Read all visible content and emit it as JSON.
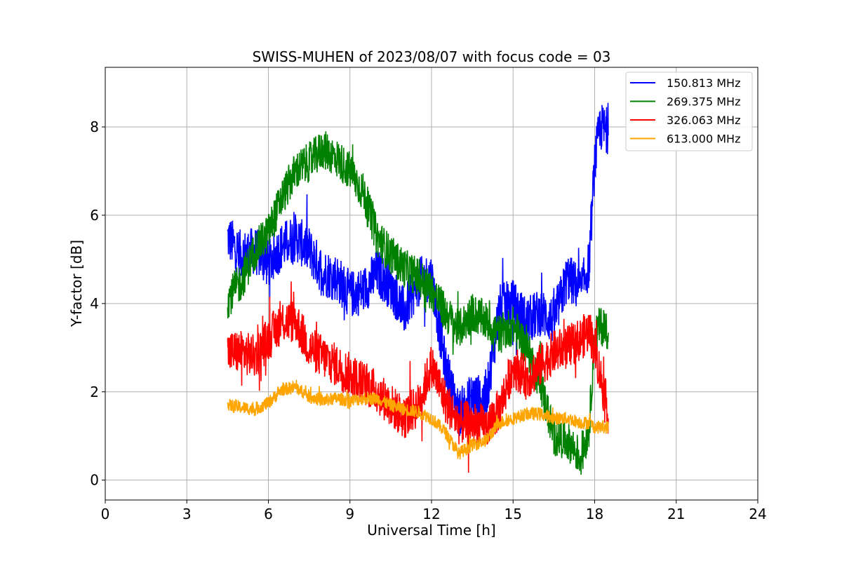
{
  "chart_data": {
    "type": "line",
    "title": "SWISS-MUHEN of 2023/08/07 with focus code = 03",
    "xlabel": "Universal Time [h]",
    "ylabel": "Y-factor [dB]",
    "xlim": [
      0,
      24
    ],
    "ylim": [
      -0.45,
      9.35
    ],
    "xticks": [
      0,
      3,
      6,
      9,
      12,
      15,
      18,
      21,
      24
    ],
    "xtick_labels": [
      "0",
      "3",
      "6",
      "9",
      "12",
      "15",
      "18",
      "21",
      "24"
    ],
    "yticks": [
      0,
      2,
      4,
      6,
      8
    ],
    "ytick_labels": [
      "0",
      "2",
      "4",
      "6",
      "8"
    ],
    "grid": true,
    "legend_position": "top-right",
    "series": [
      {
        "name": "150.813 MHz",
        "color": "#0000ff",
        "x": [
          4.5,
          5.0,
          5.5,
          6.0,
          6.5,
          7.0,
          7.5,
          8.0,
          8.5,
          9.0,
          9.5,
          10.0,
          10.5,
          11.0,
          11.5,
          12.0,
          12.5,
          13.0,
          13.5,
          14.0,
          14.5,
          15.0,
          15.5,
          16.0,
          16.5,
          17.0,
          17.5,
          17.8,
          18.0,
          18.2,
          18.5
        ],
        "y": [
          5.5,
          5.1,
          5.2,
          4.9,
          5.3,
          5.5,
          5.2,
          4.7,
          4.6,
          4.2,
          4.3,
          4.7,
          4.4,
          3.8,
          4.5,
          4.6,
          2.6,
          1.5,
          1.9,
          1.8,
          3.9,
          4.0,
          3.6,
          3.8,
          3.6,
          4.6,
          4.3,
          4.9,
          7.2,
          8.0,
          7.9
        ]
      },
      {
        "name": "269.375 MHz",
        "color": "#008000",
        "x": [
          4.5,
          5.0,
          5.5,
          6.0,
          6.5,
          7.0,
          7.5,
          8.0,
          8.5,
          9.0,
          9.5,
          10.0,
          10.5,
          11.0,
          11.5,
          12.0,
          12.5,
          13.0,
          13.5,
          14.0,
          14.5,
          15.0,
          15.5,
          16.0,
          16.5,
          17.0,
          17.5,
          17.8,
          18.0,
          18.2,
          18.5
        ],
        "y": [
          4.1,
          4.5,
          5.2,
          5.6,
          6.4,
          7.0,
          7.2,
          7.5,
          7.3,
          7.0,
          6.5,
          5.5,
          5.1,
          4.8,
          4.6,
          4.3,
          3.8,
          3.4,
          3.8,
          3.6,
          3.3,
          3.5,
          3.0,
          2.2,
          1.0,
          0.9,
          0.5,
          1.2,
          3.3,
          3.5,
          3.4
        ]
      },
      {
        "name": "326.063 MHz",
        "color": "#ff0000",
        "x": [
          4.5,
          5.0,
          5.5,
          6.0,
          6.5,
          7.0,
          7.5,
          8.0,
          8.5,
          9.0,
          9.5,
          10.0,
          10.5,
          11.0,
          11.5,
          12.0,
          12.5,
          13.0,
          13.5,
          14.0,
          14.5,
          15.0,
          15.5,
          16.0,
          16.5,
          17.0,
          17.5,
          17.8,
          18.0,
          18.2,
          18.5
        ],
        "y": [
          2.9,
          2.9,
          2.8,
          3.2,
          3.6,
          3.6,
          3.0,
          2.8,
          2.6,
          2.4,
          2.2,
          2.0,
          1.7,
          1.4,
          1.7,
          2.6,
          1.8,
          1.3,
          1.3,
          1.2,
          1.6,
          2.6,
          2.3,
          2.6,
          2.9,
          3.0,
          3.2,
          3.4,
          3.0,
          2.4,
          1.5
        ]
      },
      {
        "name": "613.000 MHz",
        "color": "#ffa500",
        "x": [
          4.5,
          5.0,
          5.5,
          6.0,
          6.5,
          7.0,
          7.5,
          8.0,
          8.5,
          9.0,
          9.5,
          10.0,
          10.5,
          11.0,
          11.5,
          12.0,
          12.5,
          13.0,
          13.5,
          14.0,
          14.5,
          15.0,
          15.5,
          16.0,
          16.5,
          17.0,
          17.5,
          17.8,
          18.0,
          18.2,
          18.5
        ],
        "y": [
          1.7,
          1.65,
          1.6,
          1.75,
          2.05,
          2.1,
          1.9,
          1.8,
          1.85,
          1.8,
          1.85,
          1.85,
          1.7,
          1.6,
          1.55,
          1.4,
          1.1,
          0.6,
          0.8,
          0.9,
          1.3,
          1.4,
          1.5,
          1.5,
          1.4,
          1.4,
          1.3,
          1.3,
          1.2,
          1.2,
          1.2
        ]
      }
    ]
  }
}
